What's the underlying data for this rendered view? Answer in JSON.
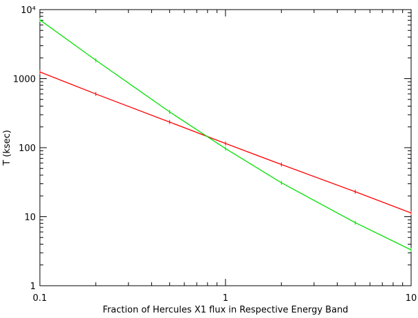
{
  "chart_data": {
    "type": "line",
    "x_label": "Fraction of Hercules X1 flux in Respective Energy Band",
    "y_label": "T (ksec)",
    "x": [
      0.1,
      0.2,
      0.5,
      1,
      2,
      5,
      10
    ],
    "series": [
      {
        "name": "red",
        "color": "#ff0000",
        "values": [
          1250,
          600,
          235,
          115,
          57,
          23,
          11.3
        ]
      },
      {
        "name": "green",
        "color": "#00e000",
        "values": [
          7100,
          1850,
          330,
          97,
          31,
          8.2,
          3.3
        ]
      }
    ],
    "xlog": true,
    "ylog": true,
    "xlim": [
      0.1,
      10
    ],
    "ylim": [
      1,
      10000
    ],
    "xticks": [
      0.1,
      1,
      10
    ],
    "yticks": [
      1,
      10,
      100,
      1000,
      {
        "value": 10000,
        "label": "10⁴"
      }
    ]
  }
}
